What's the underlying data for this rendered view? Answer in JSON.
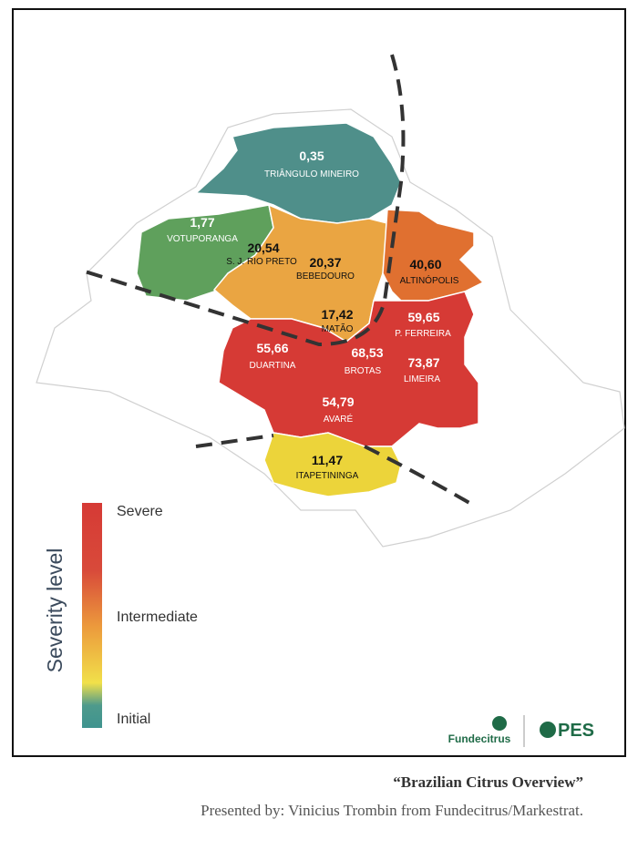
{
  "map": {
    "regions": [
      {
        "value": "0,35",
        "name": "TRIÂNGULO MINEIRO"
      },
      {
        "value": "1,77",
        "name": "VOTUPORANGA"
      },
      {
        "value": "20,54",
        "name": "S. J. RIO PRETO"
      },
      {
        "value": "20,37",
        "name": "BEBEDOURO"
      },
      {
        "value": "40,60",
        "name": "ALTINÓPOLIS"
      },
      {
        "value": "17,42",
        "name": "MATÃO"
      },
      {
        "value": "59,65",
        "name": "P. FERREIRA"
      },
      {
        "value": "55,66",
        "name": "DUARTINA"
      },
      {
        "value": "68,53",
        "name": "BROTAS"
      },
      {
        "value": "73,87",
        "name": "LIMEIRA"
      },
      {
        "value": "54,79",
        "name": "AVARÉ"
      },
      {
        "value": "11,47",
        "name": "ITAPETININGA"
      }
    ]
  },
  "legend": {
    "title": "Severity level",
    "levels": [
      "Severe",
      "Intermediate",
      "Initial"
    ]
  },
  "logos": [
    "Fundecitrus",
    "PES"
  ],
  "caption": {
    "title": "“Brazilian Citrus Overview”",
    "credit": "Presented by: Vinicius Trombin from Fundecitrus/Markestrat."
  }
}
